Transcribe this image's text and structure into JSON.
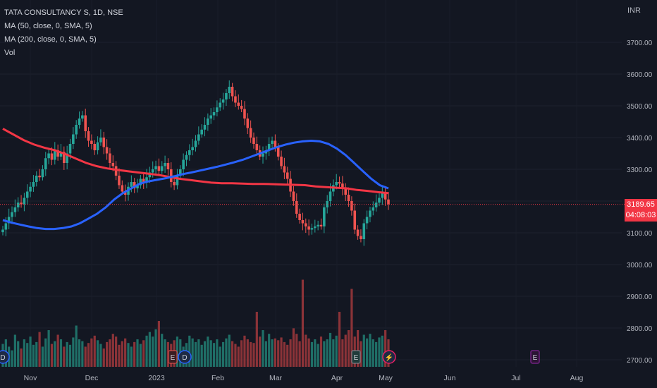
{
  "legend": {
    "symbol": "TATA CONSULTANCY S, 1D, NSE",
    "ma50": "MA (50, close, 0, SMA, 5)",
    "ma200": "MA (200, close, 0, SMA, 5)",
    "vol": "Vol"
  },
  "currency": "INR",
  "last_price": {
    "value": "3189.65",
    "countdown": "04:08:03"
  },
  "colors": {
    "background": "#131722",
    "up": "#26a69a",
    "down": "#ef5350",
    "ma50": "#2962ff",
    "ma200": "#f23645",
    "text": "#b2b5be"
  },
  "markers": [
    {
      "label": "D",
      "type": "dividend"
    },
    {
      "label": "E",
      "type": "earnings"
    },
    {
      "label": "D",
      "type": "dividend"
    },
    {
      "label": "E",
      "type": "earnings"
    },
    {
      "label": "⚡",
      "type": "split"
    },
    {
      "label": "E",
      "type": "earnings-upcoming"
    }
  ],
  "chart_data": {
    "type": "candlestick",
    "x_ticks": [
      "Nov",
      "Dec",
      "2023",
      "Feb",
      "Mar",
      "Apr",
      "May",
      "Jun",
      "Jul",
      "Aug"
    ],
    "y_ticks": [
      "3700.00",
      "3600.00",
      "3500.00",
      "3400.00",
      "3300.00",
      "3200.00",
      "3100.00",
      "3000.00",
      "2900.00",
      "2800.00",
      "2700.00"
    ],
    "y_range": [
      2680,
      3790
    ],
    "closes": [
      3110,
      3130,
      3150,
      3165,
      3180,
      3195,
      3190,
      3210,
      3230,
      3245,
      3260,
      3280,
      3275,
      3300,
      3335,
      3350,
      3330,
      3360,
      3340,
      3355,
      3320,
      3350,
      3380,
      3410,
      3440,
      3460,
      3470,
      3420,
      3390,
      3380,
      3360,
      3385,
      3400,
      3370,
      3350,
      3320,
      3310,
      3280,
      3250,
      3230,
      3220,
      3245,
      3260,
      3240,
      3250,
      3270,
      3260,
      3275,
      3290,
      3300,
      3310,
      3295,
      3310,
      3320,
      3300,
      3260,
      3250,
      3280,
      3300,
      3330,
      3345,
      3360,
      3370,
      3390,
      3410,
      3425,
      3440,
      3460,
      3470,
      3480,
      3495,
      3510,
      3520,
      3540,
      3560,
      3530,
      3510,
      3500,
      3490,
      3460,
      3430,
      3400,
      3380,
      3360,
      3340,
      3350,
      3360,
      3380,
      3390,
      3370,
      3340,
      3310,
      3290,
      3270,
      3230,
      3200,
      3160,
      3140,
      3130,
      3120,
      3110,
      3115,
      3120,
      3125,
      3120,
      3180,
      3200,
      3230,
      3250,
      3260,
      3255,
      3240,
      3220,
      3200,
      3170,
      3110,
      3090,
      3080,
      3130,
      3150,
      3170,
      3180,
      3195,
      3210,
      3225,
      3205,
      3190
    ],
    "ma50": [
      3140,
      3132,
      3126,
      3120,
      3115,
      3112,
      3112,
      3115,
      3120,
      3130,
      3145,
      3160,
      3180,
      3205,
      3225,
      3240,
      3255,
      3262,
      3267,
      3272,
      3278,
      3285,
      3290,
      3296,
      3302,
      3308,
      3315,
      3322,
      3330,
      3340,
      3350,
      3360,
      3370,
      3378,
      3384,
      3388,
      3390,
      3388,
      3380,
      3365,
      3345,
      3320,
      3295,
      3270,
      3250,
      3240
    ],
    "ma200": [
      3428,
      3410,
      3392,
      3378,
      3368,
      3360,
      3348,
      3334,
      3320,
      3310,
      3303,
      3298,
      3294,
      3290,
      3286,
      3282,
      3276,
      3270,
      3266,
      3262,
      3258,
      3256,
      3256,
      3255,
      3254,
      3254,
      3253,
      3252,
      3251,
      3250,
      3246,
      3244,
      3242,
      3240,
      3235,
      3232,
      3228,
      3225
    ],
    "volume": [
      0.25,
      0.3,
      0.22,
      0.18,
      0.35,
      0.28,
      0.2,
      0.3,
      0.26,
      0.33,
      0.24,
      0.27,
      0.38,
      0.22,
      0.31,
      0.4,
      0.25,
      0.28,
      0.35,
      0.3,
      0.22,
      0.27,
      0.24,
      0.32,
      0.45,
      0.3,
      0.28,
      0.22,
      0.26,
      0.31,
      0.34,
      0.29,
      0.25,
      0.2,
      0.27,
      0.3,
      0.36,
      0.33,
      0.24,
      0.28,
      0.31,
      0.26,
      0.22,
      0.27,
      0.3,
      0.25,
      0.29,
      0.34,
      0.38,
      0.33,
      0.41,
      0.5,
      0.36,
      0.3,
      0.27,
      0.25,
      0.29,
      0.33,
      0.3,
      0.22,
      0.26,
      0.34,
      0.31,
      0.27,
      0.3,
      0.24,
      0.28,
      0.33,
      0.29,
      0.26,
      0.3,
      0.22,
      0.27,
      0.31,
      0.35,
      0.28,
      0.25,
      0.22,
      0.29,
      0.34,
      0.3,
      0.27,
      0.26,
      0.6,
      0.33,
      0.4,
      0.28,
      0.36,
      0.3,
      0.31,
      0.29,
      0.32,
      0.27,
      0.24,
      0.3,
      0.42,
      0.36,
      0.28,
      0.95,
      0.35,
      0.31,
      0.27,
      0.3,
      0.25,
      0.33,
      0.28,
      0.3,
      0.37,
      0.3,
      0.34,
      0.6,
      0.3,
      0.35,
      0.4,
      0.85,
      0.33,
      0.4,
      0.28,
      0.35,
      0.31,
      0.36,
      0.3,
      0.27,
      0.32,
      0.34,
      0.4,
      0.3
    ],
    "last_price": 3189.65
  }
}
